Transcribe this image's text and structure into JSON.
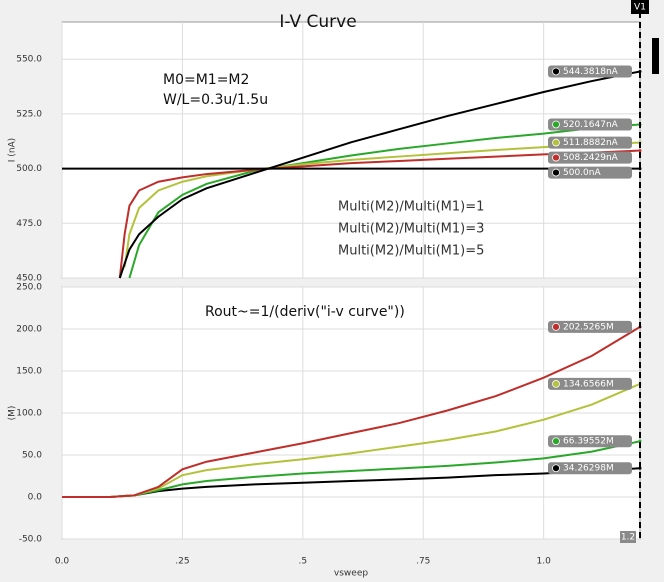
{
  "chart_data": [
    {
      "type": "line",
      "title": "I-V Curve",
      "ylabel": "I (nA)",
      "annotations": [
        "M0=M1=M2",
        "W/L=0.3u/1.5u"
      ],
      "xlim": [
        0,
        1.2
      ],
      "ylim": [
        450,
        567
      ],
      "yticks": [
        {
          "value": 450,
          "label": "450.0"
        },
        {
          "value": 475,
          "label": "475.0"
        },
        {
          "value": 500,
          "label": "500.0"
        },
        {
          "value": 525,
          "label": "525.0"
        },
        {
          "value": 550,
          "label": "550.0"
        }
      ],
      "grid": true,
      "series": [
        {
          "name": "Multi(M2)/Multi(M1)=1",
          "color": "#2aa82a",
          "x": [
            0.14,
            0.16,
            0.2,
            0.25,
            0.3,
            0.4,
            0.5,
            0.6,
            0.7,
            0.8,
            0.9,
            1.0,
            1.1,
            1.2
          ],
          "values": [
            450,
            465,
            480,
            488,
            493,
            499,
            502.5,
            506,
            509,
            511.5,
            514,
            516,
            518.5,
            520.1647
          ],
          "marker": {
            "value": 520.1647,
            "label": "520.1647nA"
          }
        },
        {
          "name": "Multi(M2)/Multi(M1)=3",
          "color": "#b3c23a",
          "x": [
            0.13,
            0.14,
            0.16,
            0.2,
            0.25,
            0.3,
            0.4,
            0.5,
            0.6,
            0.7,
            0.8,
            0.9,
            1.0,
            1.1,
            1.2
          ],
          "values": [
            455,
            470,
            482,
            490,
            494,
            496.5,
            499.5,
            502,
            504,
            505.5,
            507,
            508.5,
            509.8,
            511,
            511.8882
          ],
          "marker": {
            "value": 511.8882,
            "label": "511.8882nA"
          }
        },
        {
          "name": "Multi(M2)/Multi(M1)=5",
          "color": "#bf2e2a",
          "x": [
            0.12,
            0.13,
            0.14,
            0.16,
            0.2,
            0.25,
            0.3,
            0.4,
            0.5,
            0.6,
            0.7,
            0.8,
            0.9,
            1.0,
            1.1,
            1.2
          ],
          "values": [
            450,
            470,
            483,
            490,
            494,
            496,
            497.5,
            499.5,
            501,
            502.5,
            503.5,
            504.5,
            505.5,
            506.5,
            507.3,
            508.2429
          ],
          "marker": {
            "value": 508.2429,
            "label": "508.2429nA"
          }
        },
        {
          "color": "#000000",
          "x": [
            0.12,
            0.14,
            0.16,
            0.2,
            0.25,
            0.3,
            0.4,
            0.5,
            0.6,
            0.7,
            0.8,
            0.9,
            1.0,
            1.1,
            1.2
          ],
          "values": [
            450,
            463,
            470,
            478,
            486,
            491,
            498,
            505,
            512,
            518,
            524,
            529.5,
            535,
            540,
            544.3818
          ],
          "marker": {
            "value": 544.3818,
            "label": "544.3818nA"
          }
        },
        {
          "color": "#000000",
          "x": [
            0,
            1.2
          ],
          "values": [
            500,
            500
          ],
          "marker": {
            "value": 500,
            "label": "500.0nA"
          }
        }
      ]
    },
    {
      "type": "line",
      "ylabel": "(M)",
      "xlabel": "vsweep",
      "annotations": [
        "Rout~=1/(deriv(\"i-v curve\"))"
      ],
      "xlim": [
        0,
        1.2
      ],
      "ylim": [
        -50,
        250
      ],
      "xticks": [
        {
          "value": 0,
          "label": "0.0"
        },
        {
          "value": 0.25,
          "label": ".25"
        },
        {
          "value": 0.5,
          "label": ".5"
        },
        {
          "value": 0.75,
          "label": ".75"
        },
        {
          "value": 1,
          "label": "1.0"
        }
      ],
      "yticks": [
        {
          "value": -50,
          "label": "-50.0"
        },
        {
          "value": 0,
          "label": "0.0"
        },
        {
          "value": 50,
          "label": "50.0"
        },
        {
          "value": 100,
          "label": "100.0"
        },
        {
          "value": 150,
          "label": "150.0"
        },
        {
          "value": 200,
          "label": "200.0"
        },
        {
          "value": 250,
          "label": "250.0"
        }
      ],
      "grid": true,
      "series": [
        {
          "color": "#000000",
          "x": [
            0,
            0.1,
            0.15,
            0.2,
            0.25,
            0.3,
            0.4,
            0.5,
            0.6,
            0.7,
            0.8,
            0.9,
            1.0,
            1.1,
            1.2
          ],
          "values": [
            0,
            0,
            2,
            7,
            10,
            12,
            15,
            17,
            19,
            21,
            23,
            26,
            28,
            31,
            34.26298
          ],
          "marker": {
            "value": 34.26298,
            "label": "34.26298M"
          }
        },
        {
          "color": "#2aa82a",
          "x": [
            0,
            0.1,
            0.15,
            0.2,
            0.25,
            0.3,
            0.4,
            0.5,
            0.6,
            0.7,
            0.8,
            0.9,
            1.0,
            1.1,
            1.2
          ],
          "values": [
            0,
            0,
            2,
            8,
            15,
            19,
            24,
            28,
            31,
            34,
            37,
            41,
            46,
            54,
            66.39552
          ],
          "marker": {
            "value": 66.39552,
            "label": "66.39552M"
          }
        },
        {
          "color": "#b3c23a",
          "x": [
            0,
            0.1,
            0.15,
            0.2,
            0.25,
            0.3,
            0.4,
            0.5,
            0.6,
            0.7,
            0.8,
            0.9,
            1.0,
            1.1,
            1.2
          ],
          "values": [
            0,
            0,
            2,
            10,
            26,
            32,
            39,
            45,
            52,
            60,
            68,
            78,
            92,
            110,
            134.6566
          ],
          "marker": {
            "value": 134.6566,
            "label": "134.6566M"
          }
        },
        {
          "color": "#bf2e2a",
          "x": [
            0,
            0.1,
            0.15,
            0.2,
            0.25,
            0.3,
            0.4,
            0.5,
            0.6,
            0.7,
            0.8,
            0.9,
            1.0,
            1.1,
            1.2
          ],
          "values": [
            0,
            0,
            2,
            12,
            33,
            42,
            53,
            64,
            76,
            88,
            103,
            120,
            142,
            168,
            202.5265
          ],
          "marker": {
            "value": 202.5265,
            "label": "202.5265M"
          }
        }
      ]
    }
  ],
  "cursor": {
    "name": "V1",
    "x": {
      "value": 1.2,
      "label": "1.2"
    }
  }
}
